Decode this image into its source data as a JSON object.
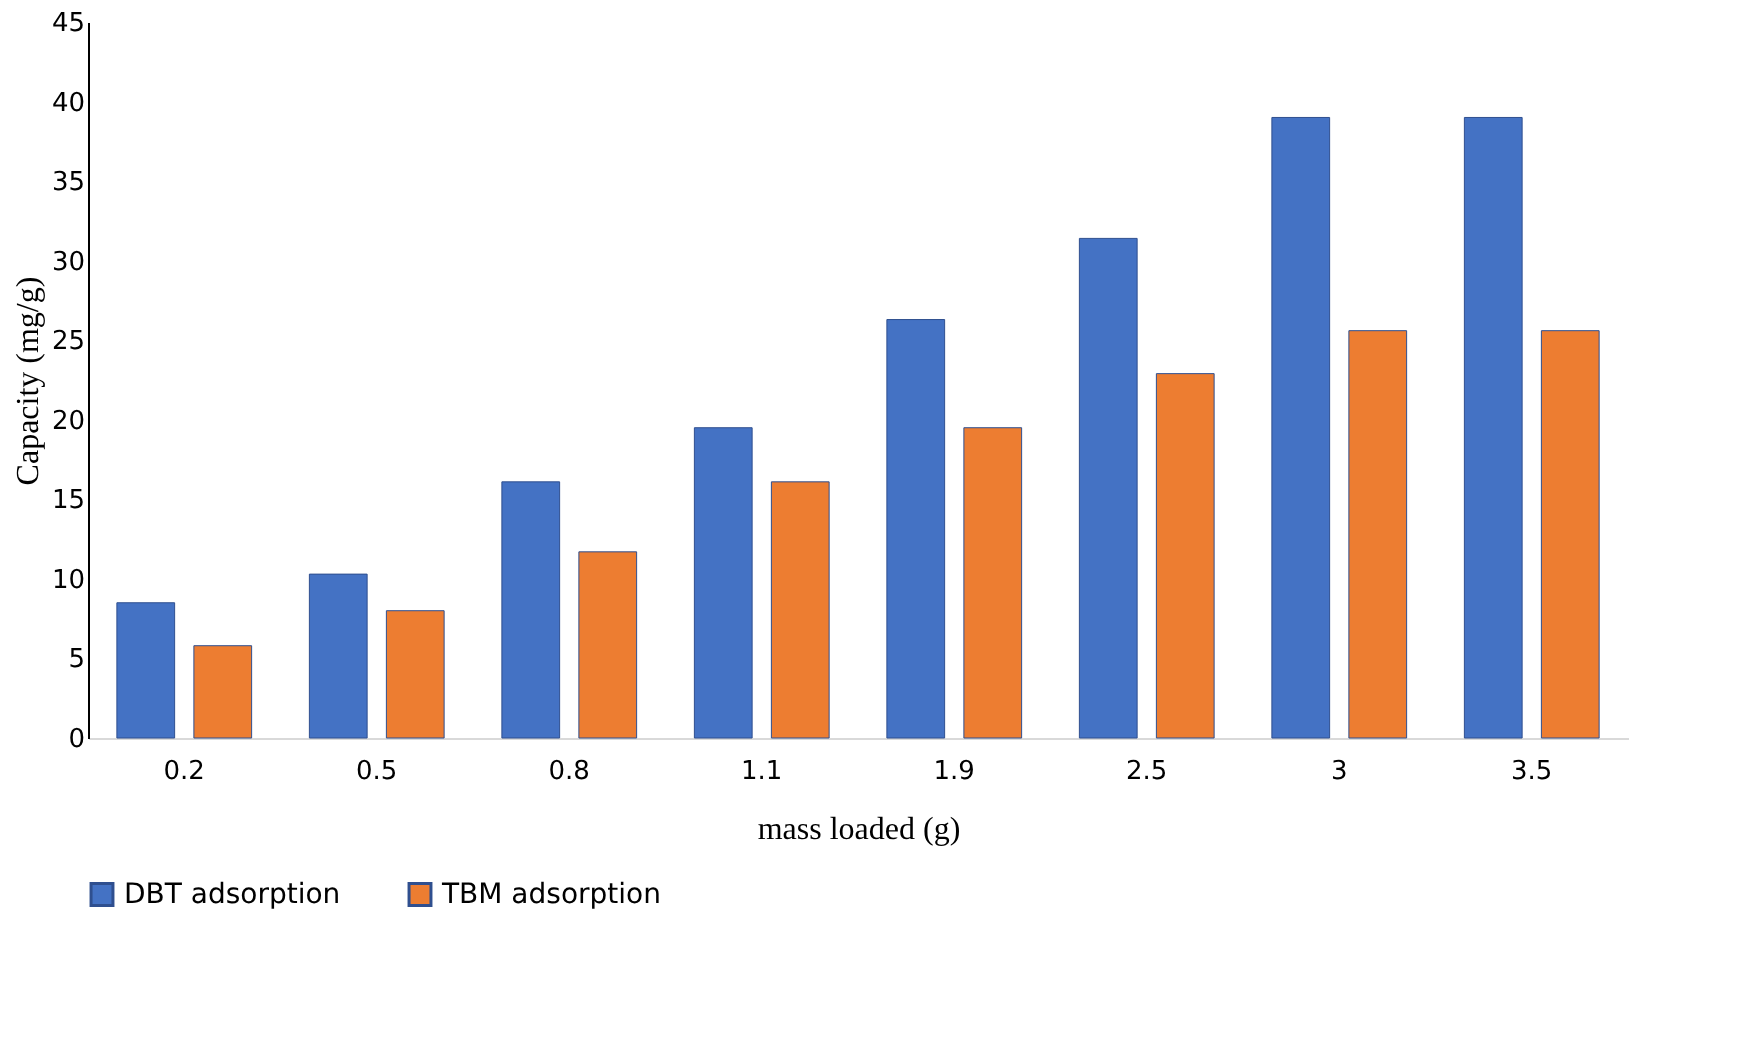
{
  "chart_data": {
    "type": "bar",
    "xlabel": "mass loaded (g)",
    "ylabel": "Capacity (mg/g)",
    "categories": [
      "0.2",
      "0.5",
      "0.8",
      "1.1",
      "1.9",
      "2.5",
      "3",
      "3.5"
    ],
    "series": [
      {
        "name": "DBT adsorption",
        "color": "#4472c4",
        "values": [
          8.5,
          10.3,
          16.1,
          19.5,
          26.3,
          31.4,
          39,
          39
        ]
      },
      {
        "name": "TBM adsorption",
        "color": "#ed7d31",
        "values": [
          5.8,
          8.0,
          11.7,
          16.1,
          19.5,
          22.9,
          25.6,
          25.6
        ]
      }
    ],
    "ylim": [
      0,
      45
    ],
    "yticks": [
      0,
      5,
      10,
      15,
      20,
      25,
      30,
      35,
      40,
      45
    ],
    "grid": false,
    "legend": "bottom"
  }
}
